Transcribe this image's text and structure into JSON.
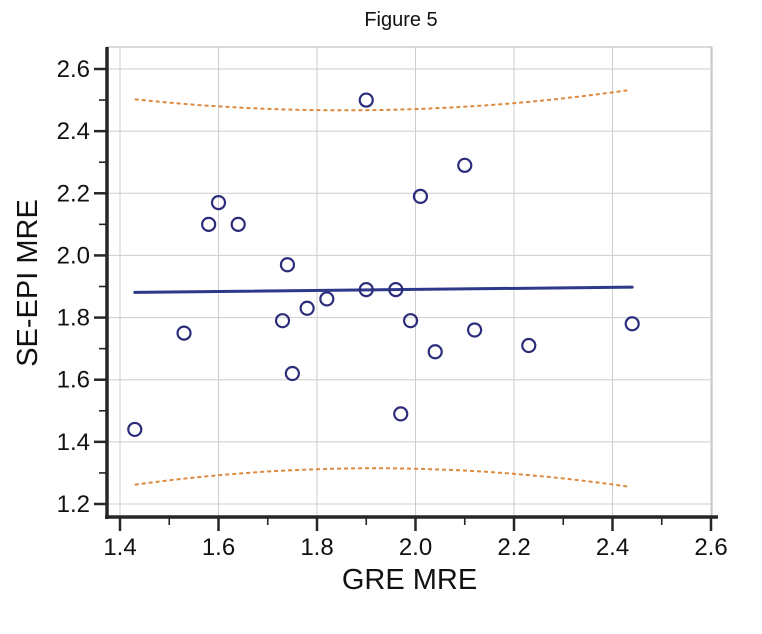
{
  "title": "Figure 5",
  "chart_data": {
    "type": "scatter",
    "title": "Figure 5",
    "xlabel": "GRE MRE",
    "ylabel": "SE-EPI MRE",
    "xlim": [
      1.37,
      2.61
    ],
    "ylim": [
      1.16,
      2.67
    ],
    "grid": true,
    "legend": "none",
    "x_ticks": [
      1.4,
      1.6,
      1.8,
      2.0,
      2.2,
      2.4,
      2.6
    ],
    "y_ticks": [
      1.2,
      1.4,
      1.6,
      1.8,
      2.0,
      2.2,
      2.4,
      2.6
    ],
    "x_minor_ticks": [
      1.5,
      1.7,
      1.9,
      2.1,
      2.3,
      2.5
    ],
    "y_minor_ticks": [
      1.3,
      1.5,
      1.7,
      1.9,
      2.1,
      2.3,
      2.5
    ],
    "points": [
      {
        "x": 1.43,
        "y": 1.44
      },
      {
        "x": 1.53,
        "y": 1.75
      },
      {
        "x": 1.58,
        "y": 2.1
      },
      {
        "x": 1.6,
        "y": 2.17
      },
      {
        "x": 1.64,
        "y": 2.1
      },
      {
        "x": 1.73,
        "y": 1.79
      },
      {
        "x": 1.74,
        "y": 1.97
      },
      {
        "x": 1.75,
        "y": 1.62
      },
      {
        "x": 1.78,
        "y": 1.83
      },
      {
        "x": 1.82,
        "y": 1.86
      },
      {
        "x": 1.9,
        "y": 2.5
      },
      {
        "x": 1.9,
        "y": 1.89
      },
      {
        "x": 1.96,
        "y": 1.89
      },
      {
        "x": 1.97,
        "y": 1.49
      },
      {
        "x": 1.99,
        "y": 1.79
      },
      {
        "x": 2.01,
        "y": 2.19
      },
      {
        "x": 2.04,
        "y": 1.69
      },
      {
        "x": 2.1,
        "y": 2.29
      },
      {
        "x": 2.12,
        "y": 1.76
      },
      {
        "x": 2.23,
        "y": 1.71
      },
      {
        "x": 2.44,
        "y": 1.78
      }
    ],
    "regression_line": {
      "x_start": 1.43,
      "y_start": 1.881,
      "x_end": 2.44,
      "y_end": 1.898
    },
    "bands": {
      "upper": {
        "shape": "parabola",
        "a": 0.195,
        "vertex_x": 1.856,
        "vertex_y": 2.467,
        "x_start": 1.43,
        "x_end": 2.44,
        "y_at_start": 2.5,
        "y_at_end": 2.53
      },
      "lower": {
        "shape": "parabola",
        "a": -0.223,
        "vertex_x": 1.917,
        "vertex_y": 1.315,
        "x_start": 1.43,
        "x_end": 2.44,
        "y_at_start": 1.26,
        "y_at_end": 1.25
      }
    },
    "colors": {
      "point_stroke": "#2b2d7a",
      "regression_line": "#2d3a8c",
      "band_dash": "#dd8a3f",
      "grid": "#cdcdcd",
      "frame": "#c4c4c4",
      "axis": "#262626",
      "text": "#111111"
    }
  }
}
